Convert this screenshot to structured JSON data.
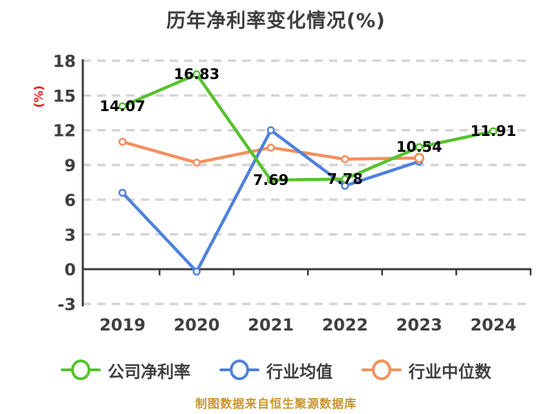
{
  "title": "历年净利率变化情况(%)",
  "source_note": "制图数据来自恒生聚源数据库",
  "colors": {
    "company": "#56c22d",
    "industry_mean": "#4e81dd",
    "industry_median": "#f68f5c",
    "axis": "#3b3b3b",
    "grid": "#d4d4d4",
    "tick_text": "#3f3f3f",
    "title_text": "#3e3e3e",
    "value_label": "#000000",
    "y_unit_label": "#e51c1c",
    "footer_text": "#c9952d",
    "marker_fill": "#ffffff"
  },
  "chart_data": {
    "type": "line",
    "title": "历年净利率变化情况(%)",
    "xlabel": "",
    "ylabel": "(%)",
    "categories": [
      "2019",
      "2020",
      "2021",
      "2022",
      "2023",
      "2024"
    ],
    "ylim": [
      -3,
      18
    ],
    "yticks": [
      18,
      15,
      12,
      9,
      6,
      3,
      0,
      -3
    ],
    "grid": "horizontal-dashed",
    "legend_position": "bottom",
    "series": [
      {
        "key": "company-net-margin",
        "name": "公司净利率",
        "color": "#56c22d",
        "values": [
          14.07,
          16.83,
          7.69,
          7.78,
          10.54,
          11.91
        ],
        "point_labels": [
          "14.07",
          "16.83",
          "7.69",
          "7.78",
          "10.54",
          "11.91"
        ]
      },
      {
        "key": "industry-mean",
        "name": "行业均值",
        "color": "#4e81dd",
        "values": [
          6.6,
          -0.2,
          12.0,
          7.2,
          9.3
        ]
      },
      {
        "key": "industry-median",
        "name": "行业中位数",
        "color": "#f68f5c",
        "values": [
          11.0,
          9.2,
          10.5,
          9.5,
          9.6
        ]
      }
    ]
  },
  "legend": {
    "items": [
      {
        "key": "company-net-margin",
        "label": "公司净利率",
        "color": "#56c22d"
      },
      {
        "key": "industry-mean",
        "label": "行业均值",
        "color": "#4e81dd"
      },
      {
        "key": "industry-median",
        "label": "行业中位数",
        "color": "#f68f5c"
      }
    ]
  }
}
